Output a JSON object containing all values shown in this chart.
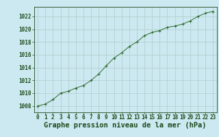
{
  "x": [
    0,
    1,
    2,
    3,
    4,
    5,
    6,
    7,
    8,
    9,
    10,
    11,
    12,
    13,
    14,
    15,
    16,
    17,
    18,
    19,
    20,
    21,
    22,
    23
  ],
  "y": [
    1008.0,
    1008.3,
    1009.0,
    1010.0,
    1010.3,
    1010.8,
    1011.2,
    1012.0,
    1013.0,
    1014.3,
    1015.5,
    1016.3,
    1017.3,
    1018.0,
    1019.0,
    1019.5,
    1019.8,
    1020.3,
    1020.5,
    1020.8,
    1021.3,
    1022.0,
    1022.5,
    1022.8
  ],
  "ylim": [
    1007.0,
    1023.5
  ],
  "yticks": [
    1008,
    1010,
    1012,
    1014,
    1016,
    1018,
    1020,
    1022
  ],
  "xticks": [
    0,
    1,
    2,
    3,
    4,
    5,
    6,
    7,
    8,
    9,
    10,
    11,
    12,
    13,
    14,
    15,
    16,
    17,
    18,
    19,
    20,
    21,
    22,
    23
  ],
  "xlabel": "Graphe pression niveau de la mer (hPa)",
  "line_color": "#2d6a2d",
  "marker": "+",
  "bg_color": "#cce8f0",
  "grid_color": "#b0cccc",
  "text_color": "#1a4a1a",
  "tick_fontsize": 5.5,
  "label_fontsize": 7.5
}
